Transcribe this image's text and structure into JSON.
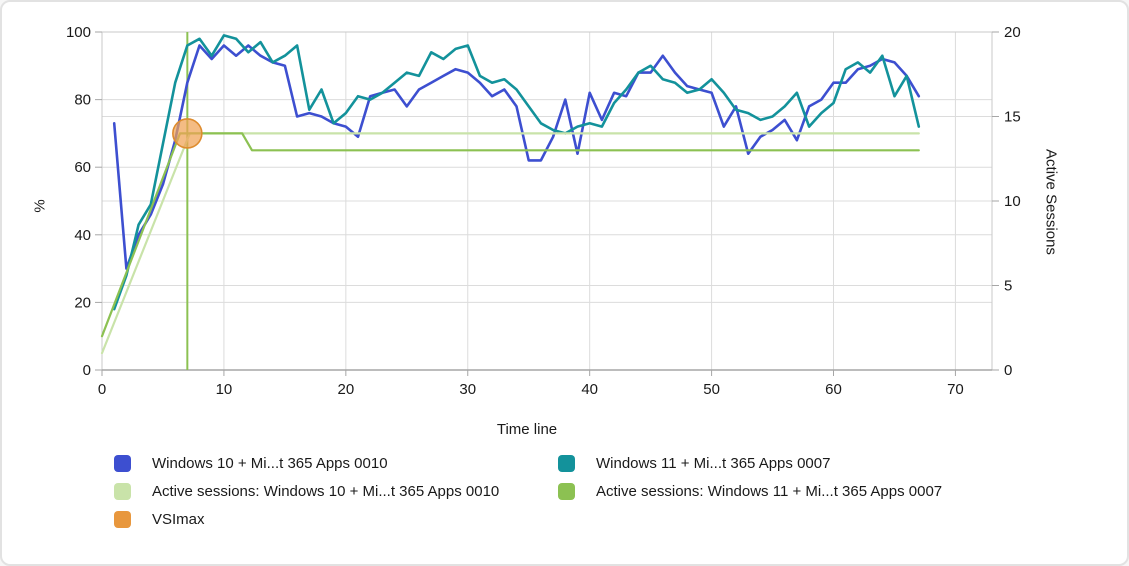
{
  "chart_data": {
    "type": "line",
    "title": "",
    "xlabel": "Time line",
    "ylabel_left": "%",
    "ylabel_right": "Active Sessions",
    "grid": true,
    "x_axis": {
      "min": 0,
      "max": 73,
      "ticks": [
        0,
        10,
        20,
        30,
        40,
        50,
        60,
        70
      ]
    },
    "y_axis_left": {
      "min": 0,
      "max": 100,
      "ticks": [
        0,
        20,
        40,
        60,
        80,
        100
      ]
    },
    "y_axis_right": {
      "min": 0,
      "max": 20,
      "ticks": [
        0,
        5,
        10,
        15,
        20
      ]
    },
    "series": [
      {
        "name": "Windows 10 + Mi...t 365 Apps 0010",
        "axis": "left",
        "unit": "%",
        "color": "#3d4fd0",
        "x_start": 1,
        "x_step": 1,
        "values": [
          73,
          30,
          40,
          46,
          55,
          68,
          85,
          96,
          92,
          96,
          93,
          96,
          93,
          91,
          90,
          75,
          76,
          75,
          73,
          72,
          69,
          81,
          82,
          83,
          78,
          83,
          85,
          87,
          89,
          88,
          85,
          81,
          83,
          78,
          62,
          62,
          69,
          80,
          64,
          82,
          74,
          82,
          81,
          88,
          88,
          93,
          88,
          84,
          83,
          82,
          72,
          78,
          64,
          69,
          71,
          74,
          68,
          78,
          80,
          85,
          85,
          89,
          90,
          92,
          91,
          87,
          81
        ]
      },
      {
        "name": "Windows 11 + Mi...t 365 Apps 0007",
        "axis": "left",
        "unit": "%",
        "color": "#13929b",
        "x_start": 1,
        "x_step": 1,
        "values": [
          18,
          28,
          43,
          49,
          67,
          85,
          96,
          98,
          93,
          99,
          98,
          94,
          97,
          91,
          93,
          96,
          77,
          83,
          73,
          76,
          81,
          80,
          82,
          85,
          88,
          87,
          94,
          92,
          95,
          96,
          87,
          85,
          86,
          83,
          78,
          73,
          71,
          70,
          72,
          73,
          72,
          79,
          83,
          88,
          90,
          86,
          85,
          82,
          83,
          86,
          82,
          77,
          76,
          74,
          75,
          78,
          82,
          72,
          76,
          79,
          89,
          91,
          88,
          93,
          81,
          87,
          72
        ]
      },
      {
        "name": "Active sessions: Windows 10 + Mi...t 365 Apps 0010",
        "axis": "right",
        "unit": "sessions",
        "color": "#c9e3a9",
        "points": [
          [
            0,
            1
          ],
          [
            7.2,
            14
          ],
          [
            67,
            14
          ]
        ]
      },
      {
        "name": "Active sessions: Windows 11 + Mi...t 365 Apps 0007",
        "axis": "right",
        "unit": "sessions",
        "color": "#8cc152",
        "points": [
          [
            0,
            2
          ],
          [
            6.4,
            14
          ],
          [
            11.5,
            14
          ],
          [
            12.3,
            13
          ],
          [
            67,
            13
          ]
        ]
      }
    ],
    "vsimax": {
      "label": "VSImax",
      "x": 7,
      "pct": 70,
      "active_sessions": 14,
      "line_color": "#8cc152",
      "marker_fill": "#f0a254",
      "marker_stroke": "#de8c2e"
    },
    "grid_color": "#dcdcdc",
    "border_color": "#c9c9c9",
    "axis_line_color": "#a6a6a6"
  },
  "legend": {
    "items": [
      {
        "label": "Windows 10 + Mi...t 365 Apps 0010",
        "color": "#3d4fd0",
        "column": 1
      },
      {
        "label": "Active sessions: Windows 10 + Mi...t 365 Apps 0010",
        "color": "#c9e3a9",
        "column": 1
      },
      {
        "label": "VSImax",
        "color": "#e8973d",
        "column": 1
      },
      {
        "label": "Windows 11 + Mi...t 365 Apps 0007",
        "color": "#13929b",
        "column": 2
      },
      {
        "label": "Active sessions: Windows 11 + Mi...t 365 Apps 0007",
        "color": "#8cc152",
        "column": 2
      }
    ]
  }
}
